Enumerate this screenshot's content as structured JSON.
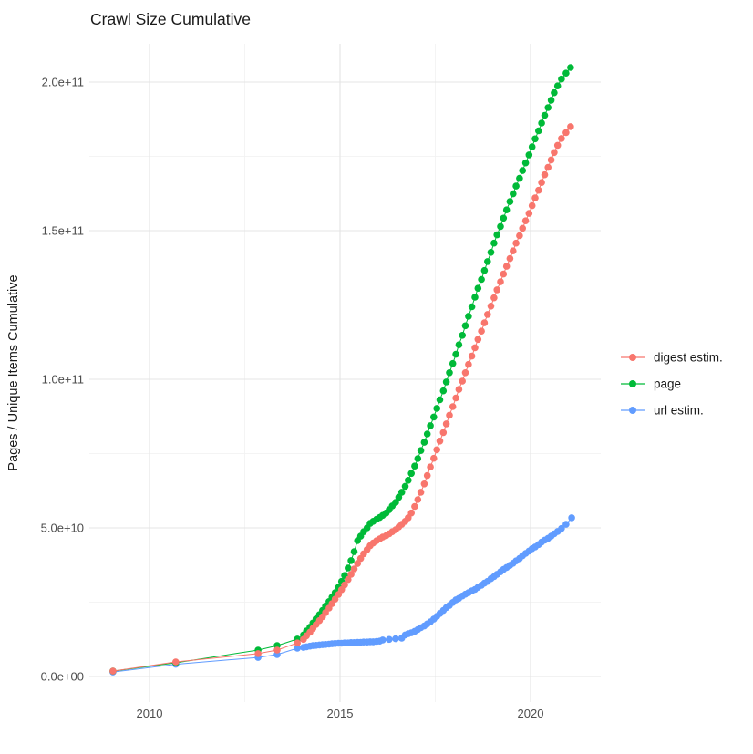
{
  "title": "Crawl Size Cumulative",
  "y_axis": {
    "label": "Pages / Unique Items Cumulative",
    "ticks": [
      {
        "value_e9": 0,
        "label": "0.0e+00"
      },
      {
        "value_e9": 50,
        "label": "5.0e+10"
      },
      {
        "value_e9": 100,
        "label": "1.0e+11"
      },
      {
        "value_e9": 150,
        "label": "1.5e+11"
      },
      {
        "value_e9": 200,
        "label": "2.0e+11"
      }
    ],
    "minor_ticks_e9": [
      25,
      75,
      125,
      175
    ]
  },
  "x_axis": {
    "ticks": [
      {
        "year": 2010,
        "label": "2010"
      },
      {
        "year": 2015,
        "label": "2015"
      },
      {
        "year": 2020,
        "label": "2020"
      }
    ],
    "minor_ticks": [
      2012.5,
      2017.5
    ]
  },
  "legend": {
    "position": "right",
    "items": [
      {
        "name": "digest estim.",
        "color": "#F8766D"
      },
      {
        "name": "page",
        "color": "#00BA38"
      },
      {
        "name": "url estim.",
        "color": "#619CFF"
      }
    ]
  },
  "colors": {
    "digest": "#F8766D",
    "page": "#00BA38",
    "url": "#619CFF",
    "grid_major": "#E4E4E4",
    "grid_minor": "#F1F1F1",
    "tick_text": "#4D4D4D",
    "title_text": "#1A1A1A"
  },
  "chart_data": {
    "type": "scatter",
    "title": "Crawl Size Cumulative",
    "xlabel": "",
    "ylabel": "Pages / Unique Items Cumulative",
    "values_unit": "billions (1e9) of pages / unique items, cumulative",
    "xlim": [
      2008.5,
      2021.9
    ],
    "ylim_e9": [
      -10,
      215
    ],
    "grid": true,
    "legend_position": "right",
    "series": [
      {
        "name": "digest estim.",
        "color": "#F8766D",
        "points": [
          [
            2009.04,
            1.8
          ],
          [
            2010.69,
            4.9
          ],
          [
            2012.85,
            7.7
          ],
          [
            2013.35,
            8.9
          ],
          [
            2013.88,
            11.3
          ],
          [
            2014.04,
            12.5
          ],
          [
            2014.12,
            13.7
          ],
          [
            2014.21,
            14.9
          ],
          [
            2014.29,
            16.2
          ],
          [
            2014.37,
            17.5
          ],
          [
            2014.46,
            18.8
          ],
          [
            2014.54,
            20.1
          ],
          [
            2014.62,
            21.5
          ],
          [
            2014.71,
            23.0
          ],
          [
            2014.79,
            24.5
          ],
          [
            2014.87,
            26.0
          ],
          [
            2014.96,
            27.6
          ],
          [
            2015.04,
            29.2
          ],
          [
            2015.12,
            30.8
          ],
          [
            2015.21,
            32.6
          ],
          [
            2015.29,
            34.4
          ],
          [
            2015.37,
            36.2
          ],
          [
            2015.46,
            38.0
          ],
          [
            2015.54,
            39.7
          ],
          [
            2015.62,
            41.3
          ],
          [
            2015.71,
            42.7
          ],
          [
            2015.79,
            44.0
          ],
          [
            2015.87,
            44.9
          ],
          [
            2015.96,
            45.7
          ],
          [
            2016.04,
            46.3
          ],
          [
            2016.12,
            46.9
          ],
          [
            2016.21,
            47.4
          ],
          [
            2016.29,
            48.0
          ],
          [
            2016.37,
            48.7
          ],
          [
            2016.46,
            49.4
          ],
          [
            2016.54,
            50.3
          ],
          [
            2016.62,
            51.2
          ],
          [
            2016.71,
            52.2
          ],
          [
            2016.79,
            53.4
          ],
          [
            2016.87,
            55.0
          ],
          [
            2016.96,
            57.2
          ],
          [
            2017.04,
            59.5
          ],
          [
            2017.12,
            62.0
          ],
          [
            2017.21,
            64.8
          ],
          [
            2017.29,
            67.6
          ],
          [
            2017.37,
            70.5
          ],
          [
            2017.46,
            73.4
          ],
          [
            2017.54,
            76.3
          ],
          [
            2017.62,
            79.2
          ],
          [
            2017.71,
            82.1
          ],
          [
            2017.79,
            85.0
          ],
          [
            2017.87,
            87.9
          ],
          [
            2017.96,
            90.8
          ],
          [
            2018.04,
            93.7
          ],
          [
            2018.12,
            96.6
          ],
          [
            2018.21,
            99.4
          ],
          [
            2018.29,
            102.2
          ],
          [
            2018.37,
            105.0
          ],
          [
            2018.46,
            107.8
          ],
          [
            2018.54,
            110.6
          ],
          [
            2018.62,
            113.4
          ],
          [
            2018.71,
            116.2
          ],
          [
            2018.79,
            119.0
          ],
          [
            2018.87,
            121.8
          ],
          [
            2018.96,
            124.6
          ],
          [
            2019.04,
            127.4
          ],
          [
            2019.12,
            130.1
          ],
          [
            2019.21,
            132.8
          ],
          [
            2019.29,
            135.4
          ],
          [
            2019.37,
            138.0
          ],
          [
            2019.46,
            140.6
          ],
          [
            2019.54,
            143.2
          ],
          [
            2019.62,
            145.8
          ],
          [
            2019.71,
            148.3
          ],
          [
            2019.79,
            150.8
          ],
          [
            2019.87,
            153.3
          ],
          [
            2019.96,
            155.8
          ],
          [
            2020.04,
            158.4
          ],
          [
            2020.12,
            161.0
          ],
          [
            2020.21,
            163.6
          ],
          [
            2020.29,
            166.2
          ],
          [
            2020.37,
            168.8
          ],
          [
            2020.46,
            171.3
          ],
          [
            2020.54,
            173.8
          ],
          [
            2020.62,
            176.3
          ],
          [
            2020.71,
            178.7
          ],
          [
            2020.81,
            181.0
          ],
          [
            2020.93,
            183.0
          ],
          [
            2021.05,
            185.0
          ]
        ]
      },
      {
        "name": "page",
        "color": "#00BA38",
        "points": [
          [
            2009.04,
            1.8
          ],
          [
            2010.69,
            4.6
          ],
          [
            2012.85,
            8.9
          ],
          [
            2013.35,
            10.4
          ],
          [
            2013.88,
            12.6
          ],
          [
            2014.04,
            14.0
          ],
          [
            2014.12,
            15.3
          ],
          [
            2014.21,
            16.6
          ],
          [
            2014.29,
            18.0
          ],
          [
            2014.37,
            19.4
          ],
          [
            2014.46,
            20.8
          ],
          [
            2014.54,
            22.2
          ],
          [
            2014.62,
            23.7
          ],
          [
            2014.71,
            25.2
          ],
          [
            2014.79,
            26.7
          ],
          [
            2014.87,
            28.2
          ],
          [
            2014.96,
            30.0
          ],
          [
            2015.04,
            32.0
          ],
          [
            2015.12,
            34.0
          ],
          [
            2015.21,
            36.5
          ],
          [
            2015.29,
            39.0
          ],
          [
            2015.37,
            42.0
          ],
          [
            2015.46,
            45.7
          ],
          [
            2015.54,
            47.2
          ],
          [
            2015.62,
            48.7
          ],
          [
            2015.71,
            50.0
          ],
          [
            2015.79,
            51.5
          ],
          [
            2015.87,
            52.2
          ],
          [
            2015.96,
            52.9
          ],
          [
            2016.04,
            53.5
          ],
          [
            2016.12,
            54.2
          ],
          [
            2016.21,
            55.0
          ],
          [
            2016.29,
            56.1
          ],
          [
            2016.37,
            57.4
          ],
          [
            2016.46,
            58.6
          ],
          [
            2016.54,
            60.3
          ],
          [
            2016.62,
            62.0
          ],
          [
            2016.71,
            64.0
          ],
          [
            2016.79,
            66.0
          ],
          [
            2016.87,
            68.3
          ],
          [
            2016.96,
            70.8
          ],
          [
            2017.04,
            73.3
          ],
          [
            2017.12,
            76.0
          ],
          [
            2017.21,
            78.8
          ],
          [
            2017.29,
            81.6
          ],
          [
            2017.37,
            84.4
          ],
          [
            2017.46,
            87.3
          ],
          [
            2017.54,
            90.2
          ],
          [
            2017.62,
            93.1
          ],
          [
            2017.71,
            96.1
          ],
          [
            2017.79,
            99.1
          ],
          [
            2017.87,
            102.2
          ],
          [
            2017.96,
            105.3
          ],
          [
            2018.04,
            108.4
          ],
          [
            2018.12,
            111.6
          ],
          [
            2018.21,
            114.8
          ],
          [
            2018.29,
            118.0
          ],
          [
            2018.37,
            121.2
          ],
          [
            2018.46,
            124.4
          ],
          [
            2018.54,
            127.6
          ],
          [
            2018.62,
            130.6
          ],
          [
            2018.71,
            133.6
          ],
          [
            2018.79,
            136.6
          ],
          [
            2018.87,
            139.6
          ],
          [
            2018.96,
            142.7
          ],
          [
            2019.04,
            145.8
          ],
          [
            2019.12,
            148.6
          ],
          [
            2019.21,
            151.4
          ],
          [
            2019.29,
            154.2
          ],
          [
            2019.37,
            157.0
          ],
          [
            2019.46,
            159.8
          ],
          [
            2019.54,
            162.4
          ],
          [
            2019.62,
            165.0
          ],
          [
            2019.71,
            167.6
          ],
          [
            2019.79,
            170.2
          ],
          [
            2019.87,
            172.8
          ],
          [
            2019.96,
            175.5
          ],
          [
            2020.04,
            178.2
          ],
          [
            2020.12,
            180.9
          ],
          [
            2020.21,
            183.6
          ],
          [
            2020.29,
            186.2
          ],
          [
            2020.37,
            188.8
          ],
          [
            2020.46,
            191.4
          ],
          [
            2020.54,
            193.9
          ],
          [
            2020.62,
            196.4
          ],
          [
            2020.71,
            198.7
          ],
          [
            2020.81,
            201.0
          ],
          [
            2020.93,
            203.0
          ],
          [
            2021.05,
            204.9
          ]
        ]
      },
      {
        "name": "url estim.",
        "color": "#619CFF",
        "points": [
          [
            2009.04,
            1.5
          ],
          [
            2010.69,
            4.1
          ],
          [
            2012.85,
            6.4
          ],
          [
            2013.35,
            7.4
          ],
          [
            2013.88,
            9.5
          ],
          [
            2014.04,
            9.8
          ],
          [
            2014.12,
            10.0
          ],
          [
            2014.21,
            10.2
          ],
          [
            2014.29,
            10.4
          ],
          [
            2014.37,
            10.5
          ],
          [
            2014.46,
            10.6
          ],
          [
            2014.54,
            10.7
          ],
          [
            2014.62,
            10.8
          ],
          [
            2014.71,
            10.9
          ],
          [
            2014.79,
            11.0
          ],
          [
            2014.87,
            11.1
          ],
          [
            2014.96,
            11.2
          ],
          [
            2015.04,
            11.2
          ],
          [
            2015.12,
            11.3
          ],
          [
            2015.21,
            11.3
          ],
          [
            2015.29,
            11.4
          ],
          [
            2015.37,
            11.4
          ],
          [
            2015.46,
            11.5
          ],
          [
            2015.54,
            11.5
          ],
          [
            2015.62,
            11.6
          ],
          [
            2015.71,
            11.6
          ],
          [
            2015.79,
            11.7
          ],
          [
            2015.87,
            11.7
          ],
          [
            2015.96,
            11.8
          ],
          [
            2016.04,
            11.9
          ],
          [
            2016.12,
            12.3
          ],
          [
            2016.29,
            12.5
          ],
          [
            2016.46,
            12.7
          ],
          [
            2016.62,
            12.9
          ],
          [
            2016.71,
            14.0
          ],
          [
            2016.79,
            14.4
          ],
          [
            2016.87,
            14.7
          ],
          [
            2016.96,
            15.2
          ],
          [
            2017.04,
            15.8
          ],
          [
            2017.12,
            16.4
          ],
          [
            2017.21,
            17.0
          ],
          [
            2017.29,
            17.7
          ],
          [
            2017.37,
            18.4
          ],
          [
            2017.46,
            19.3
          ],
          [
            2017.54,
            20.2
          ],
          [
            2017.62,
            21.2
          ],
          [
            2017.71,
            22.2
          ],
          [
            2017.79,
            23.2
          ],
          [
            2017.87,
            23.9
          ],
          [
            2017.96,
            24.9
          ],
          [
            2018.04,
            25.8
          ],
          [
            2018.12,
            26.3
          ],
          [
            2018.21,
            27.1
          ],
          [
            2018.29,
            27.7
          ],
          [
            2018.37,
            28.2
          ],
          [
            2018.46,
            28.8
          ],
          [
            2018.54,
            29.3
          ],
          [
            2018.62,
            30.0
          ],
          [
            2018.71,
            30.7
          ],
          [
            2018.79,
            31.4
          ],
          [
            2018.87,
            32.0
          ],
          [
            2018.96,
            32.9
          ],
          [
            2019.04,
            33.6
          ],
          [
            2019.12,
            34.4
          ],
          [
            2019.21,
            35.2
          ],
          [
            2019.29,
            36.0
          ],
          [
            2019.37,
            36.7
          ],
          [
            2019.46,
            37.4
          ],
          [
            2019.54,
            38.1
          ],
          [
            2019.62,
            38.9
          ],
          [
            2019.71,
            39.7
          ],
          [
            2019.79,
            40.6
          ],
          [
            2019.87,
            41.4
          ],
          [
            2019.96,
            42.2
          ],
          [
            2020.04,
            43.0
          ],
          [
            2020.12,
            43.6
          ],
          [
            2020.21,
            44.4
          ],
          [
            2020.29,
            45.2
          ],
          [
            2020.37,
            45.9
          ],
          [
            2020.46,
            46.5
          ],
          [
            2020.54,
            47.2
          ],
          [
            2020.62,
            48.0
          ],
          [
            2020.71,
            48.8
          ],
          [
            2020.81,
            49.8
          ],
          [
            2020.93,
            51.2
          ],
          [
            2021.08,
            53.4
          ]
        ]
      }
    ]
  }
}
